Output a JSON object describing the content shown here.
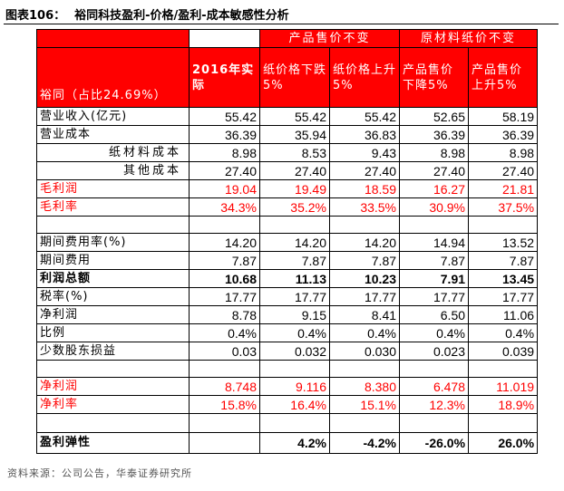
{
  "figure": {
    "number": "图表106：",
    "title": "裕同科技盈利-价格/盈利-成本敏感性分析"
  },
  "table": {
    "group_headers": [
      "产品售价不变",
      "原材料纸价不变"
    ],
    "row_header": "裕同（占比24.69%）",
    "columns": [
      "2016年实际",
      "纸价格下跌5%",
      "纸价格上升5%",
      "产品售价下降5%",
      "产品售价上升5%"
    ],
    "rows": [
      {
        "label": "营业收入(亿元)",
        "values": [
          "55.42",
          "55.42",
          "55.42",
          "52.65",
          "58.19"
        ]
      },
      {
        "label": "营业成本",
        "values": [
          "36.39",
          "35.94",
          "36.83",
          "36.39",
          "36.39"
        ]
      },
      {
        "label": "纸材料成本",
        "values": [
          "8.98",
          "8.53",
          "9.43",
          "8.98",
          "8.98"
        ]
      },
      {
        "label": "其他成本",
        "values": [
          "27.40",
          "27.40",
          "27.40",
          "27.40",
          "27.40"
        ]
      },
      {
        "label": "毛利润",
        "values": [
          "19.04",
          "19.49",
          "18.59",
          "16.27",
          "21.81"
        ]
      },
      {
        "label": "毛利率",
        "values": [
          "34.3%",
          "35.2%",
          "33.5%",
          "30.9%",
          "37.5%"
        ]
      },
      {
        "label": "期间费用率(%)",
        "values": [
          "14.20",
          "14.20",
          "14.20",
          "14.94",
          "13.52"
        ]
      },
      {
        "label": "期间费用",
        "values": [
          "7.87",
          "7.87",
          "7.87",
          "7.87",
          "7.87"
        ]
      },
      {
        "label": "利润总额",
        "values": [
          "10.68",
          "11.13",
          "10.23",
          "7.91",
          "13.45"
        ]
      },
      {
        "label": "税率(%)",
        "values": [
          "17.77",
          "17.77",
          "17.77",
          "17.77",
          "17.77"
        ]
      },
      {
        "label": "净利润",
        "values": [
          "8.78",
          "9.15",
          "8.41",
          "6.50",
          "11.06"
        ]
      },
      {
        "label": "比例",
        "values": [
          "0.4%",
          "0.4%",
          "0.4%",
          "0.4%",
          "0.4%"
        ]
      },
      {
        "label": "少数股东损益",
        "values": [
          "0.03",
          "0.032",
          "0.030",
          "0.023",
          "0.039"
        ]
      },
      {
        "label": "净利润",
        "values": [
          "8.748",
          "9.116",
          "8.380",
          "6.478",
          "11.019"
        ]
      },
      {
        "label": "净利率",
        "values": [
          "15.8%",
          "16.4%",
          "15.1%",
          "12.3%",
          "18.9%"
        ]
      },
      {
        "label": "盈利弹性",
        "values": [
          "",
          "4.2%",
          "-4.2%",
          "-26.0%",
          "26.0%"
        ]
      }
    ]
  },
  "source": "资料来源：公司公告，华泰证券研究所",
  "colors": {
    "accent_red": "#ff0000",
    "header_text": "#ffffff"
  }
}
